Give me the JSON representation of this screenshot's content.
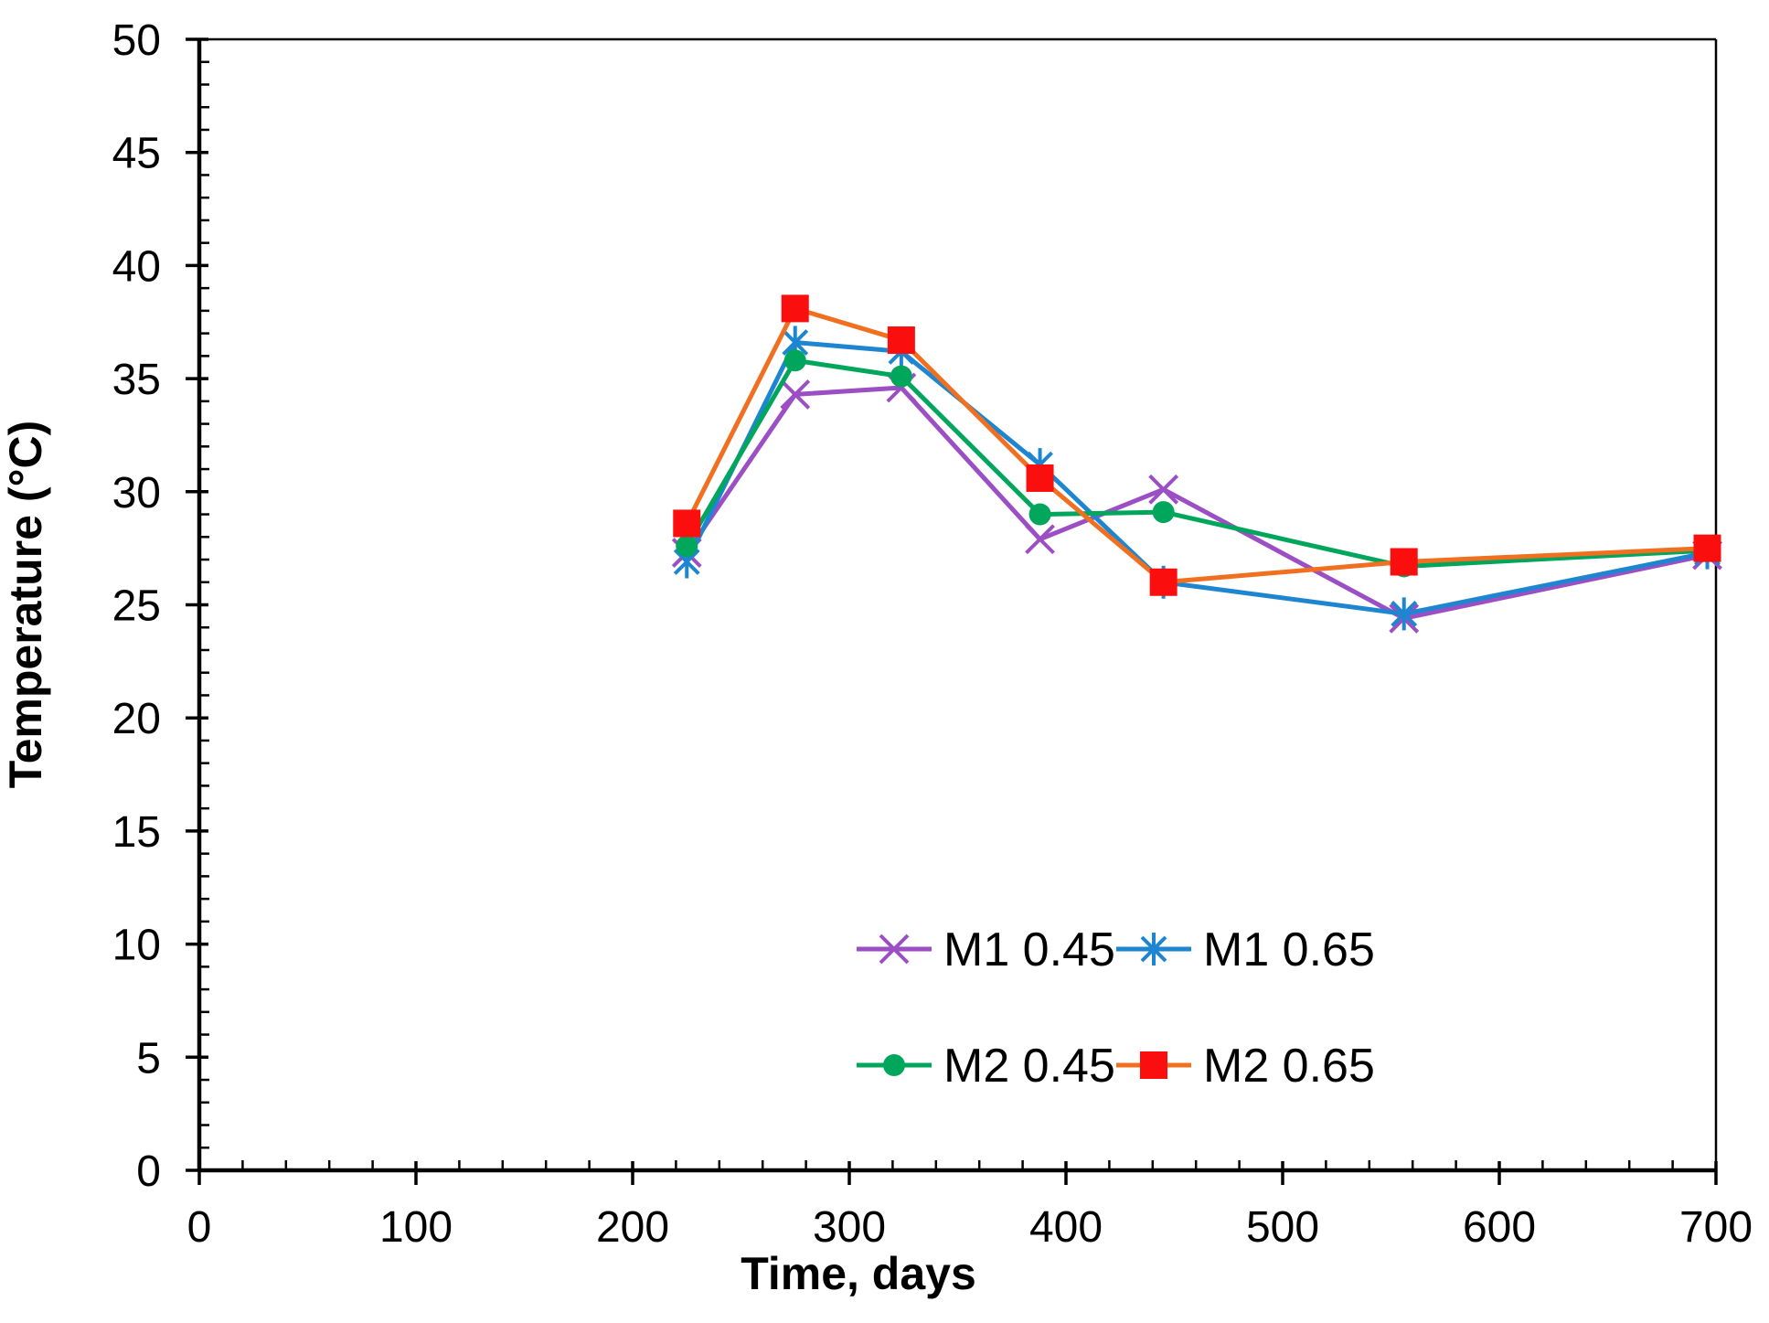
{
  "chart_data": {
    "type": "line",
    "title": "",
    "xlabel": "Time, days",
    "ylabel": "Temperature (°C)",
    "xlim": [
      0,
      700
    ],
    "ylim": [
      0,
      50
    ],
    "x_major_ticks": [
      0,
      100,
      200,
      300,
      400,
      500,
      600,
      700
    ],
    "x_minor_step": 20,
    "y_major_ticks": [
      0,
      5,
      10,
      15,
      20,
      25,
      30,
      35,
      40,
      45,
      50
    ],
    "y_minor_step": 1,
    "grid": false,
    "axis_color": "#000000",
    "background_color": "#FFFFFF",
    "legend": {
      "position": "inside-lower-middle",
      "columns": 2,
      "entries": [
        "M1 0.45",
        "M1 0.65",
        "M2 0.45",
        "M2 0.65"
      ]
    },
    "x": [
      225,
      275,
      324,
      388,
      445,
      556,
      696
    ],
    "series": [
      {
        "name": "M1 0.45",
        "marker": "x-cross",
        "line_color": "#9C4FC4",
        "marker_color": "#9C4FC4",
        "values": [
          27.3,
          34.3,
          34.6,
          27.9,
          30.1,
          24.4,
          27.2
        ]
      },
      {
        "name": "M1 0.65",
        "marker": "asterisk",
        "line_color": "#1E86D0",
        "marker_color": "#1E86D0",
        "values": [
          26.9,
          36.6,
          36.2,
          31.2,
          26.0,
          24.6,
          27.3
        ]
      },
      {
        "name": "M2 0.45",
        "marker": "filled-circle",
        "line_color": "#00A65C",
        "marker_color": "#00A65C",
        "values": [
          27.6,
          35.8,
          35.1,
          29.0,
          29.1,
          26.7,
          27.4
        ]
      },
      {
        "name": "M2 0.65",
        "marker": "filled-square",
        "line_color": "#F07020",
        "marker_color": "#FB0E0E",
        "values": [
          28.6,
          38.1,
          36.7,
          30.6,
          26.0,
          26.9,
          27.5
        ]
      }
    ]
  }
}
